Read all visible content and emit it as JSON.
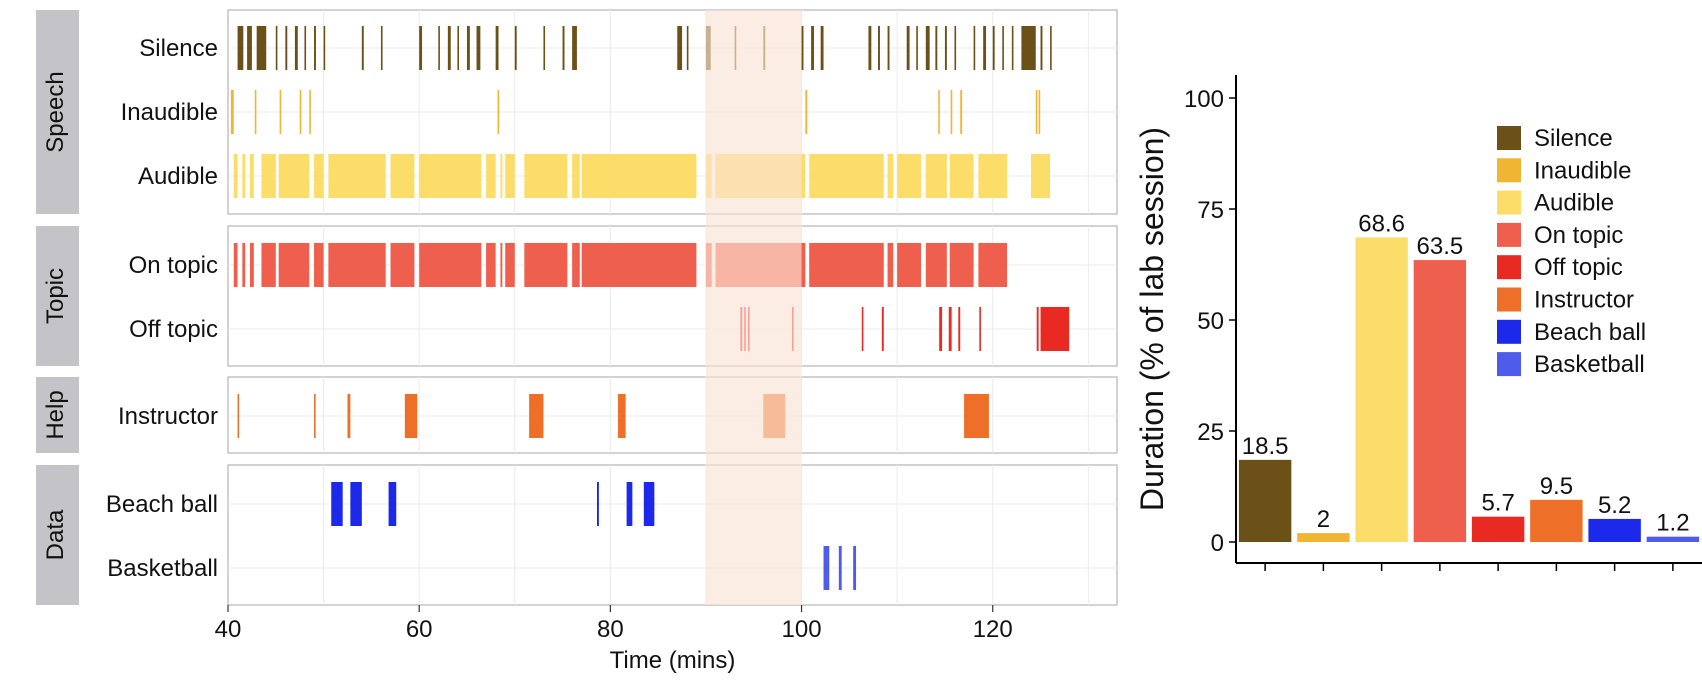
{
  "chart_data": [
    {
      "type": "timeline",
      "xlabel": "Time (mins)",
      "xlim": [
        40,
        133
      ],
      "xticks": [
        40,
        60,
        80,
        100,
        120
      ],
      "highlight_range": [
        90,
        100
      ],
      "highlight_color": "#FBE3D6",
      "facets": [
        {
          "label": "Speech",
          "rows": [
            {
              "label": "Silence",
              "color": "#6B5018",
              "segments": [
                [
                  41,
                  41.6
                ],
                [
                  42,
                  42.5
                ],
                [
                  43,
                  44
                ],
                [
                  45,
                  45.1
                ],
                [
                  46,
                  46.2
                ],
                [
                  47,
                  47.3
                ],
                [
                  48,
                  48.1
                ],
                [
                  49,
                  49.2
                ],
                [
                  50,
                  50.1
                ],
                [
                  54,
                  54.2
                ],
                [
                  56,
                  56.1
                ],
                [
                  60,
                  60.3
                ],
                [
                  62,
                  62.1
                ],
                [
                  63,
                  63.3
                ],
                [
                  64,
                  64.1
                ],
                [
                  65,
                  65.3
                ],
                [
                  66,
                  66.4
                ],
                [
                  68,
                  68.3
                ],
                [
                  70,
                  70.2
                ],
                [
                  73,
                  73.1
                ],
                [
                  75,
                  75.2
                ],
                [
                  76,
                  76.5
                ],
                [
                  87,
                  87.5
                ],
                [
                  88,
                  88.1
                ],
                [
                  90,
                  90.5
                ],
                [
                  93,
                  93.1
                ],
                [
                  96,
                  96.2
                ],
                [
                  100,
                  100.2
                ],
                [
                  101,
                  101.3
                ],
                [
                  102,
                  102.3
                ],
                [
                  107,
                  107.3
                ],
                [
                  108,
                  108.2
                ],
                [
                  109,
                  109.2
                ],
                [
                  111,
                  111.3
                ],
                [
                  112,
                  112.1
                ],
                [
                  113,
                  113.4
                ],
                [
                  114,
                  114.2
                ],
                [
                  115,
                  115.2
                ],
                [
                  116,
                  116.1
                ],
                [
                  118,
                  118.1
                ],
                [
                  119,
                  119.3
                ],
                [
                  120,
                  120.2
                ],
                [
                  121,
                  121.1
                ],
                [
                  122,
                  122.1
                ],
                [
                  123,
                  124.5
                ],
                [
                  125,
                  125.2
                ],
                [
                  126,
                  126.1
                ]
              ]
            },
            {
              "label": "Inaudible",
              "color": "#F0B533",
              "segments": [
                [
                  40.3,
                  40.6
                ],
                [
                  42.8,
                  42.9
                ],
                [
                  45.4,
                  45.5
                ],
                [
                  47.5,
                  47.6
                ],
                [
                  48.5,
                  48.6
                ],
                [
                  68.2,
                  68.3
                ],
                [
                  100.4,
                  100.6
                ],
                [
                  114.3,
                  114.4
                ],
                [
                  115.6,
                  115.7
                ],
                [
                  116.6,
                  116.8
                ],
                [
                  124.5,
                  124.6
                ],
                [
                  124.8,
                  124.9
                ]
              ]
            },
            {
              "label": "Audible",
              "color": "#FCDD6A",
              "segments": [
                [
                  40.6,
                  41
                ],
                [
                  41.5,
                  41.8
                ],
                [
                  42.3,
                  42.7
                ],
                [
                  43.5,
                  45
                ],
                [
                  45.3,
                  48.5
                ],
                [
                  49,
                  50
                ],
                [
                  50.5,
                  56.5
                ],
                [
                  57,
                  59.5
                ],
                [
                  60,
                  66.5
                ],
                [
                  67,
                  68
                ],
                [
                  68.5,
                  68.7
                ],
                [
                  69,
                  70
                ],
                [
                  71,
                  75.5
                ],
                [
                  76,
                  76.8
                ],
                [
                  77,
                  89
                ],
                [
                  90,
                  90.6
                ],
                [
                  91,
                  100.4
                ],
                [
                  100.8,
                  108.6
                ],
                [
                  109,
                  109.6
                ],
                [
                  110,
                  112.5
                ],
                [
                  113,
                  115.2
                ],
                [
                  115.5,
                  118
                ],
                [
                  118.5,
                  121.5
                ],
                [
                  124,
                  126
                ]
              ]
            }
          ]
        },
        {
          "label": "Topic",
          "rows": [
            {
              "label": "On topic",
              "color": "#EF5F4D",
              "segments": [
                [
                  40.6,
                  41
                ],
                [
                  41.5,
                  41.8
                ],
                [
                  42.3,
                  42.7
                ],
                [
                  43.5,
                  45
                ],
                [
                  45.3,
                  48.5
                ],
                [
                  49,
                  50
                ],
                [
                  50.5,
                  56.5
                ],
                [
                  57,
                  59.5
                ],
                [
                  60,
                  66.5
                ],
                [
                  67,
                  68
                ],
                [
                  68.5,
                  68.7
                ],
                [
                  69,
                  70
                ],
                [
                  71,
                  75.5
                ],
                [
                  76,
                  76.8
                ],
                [
                  77,
                  89
                ],
                [
                  90,
                  90.6
                ],
                [
                  91,
                  100.4
                ],
                [
                  100.8,
                  108.6
                ],
                [
                  109,
                  109.6
                ],
                [
                  110,
                  112.5
                ],
                [
                  113,
                  115.2
                ],
                [
                  115.5,
                  118
                ],
                [
                  118.5,
                  121.5
                ]
              ]
            },
            {
              "label": "Off topic",
              "color": "#E82A22",
              "segments": [
                [
                  93.6,
                  93.8
                ],
                [
                  94,
                  94.1
                ],
                [
                  94.4,
                  94.5
                ],
                [
                  99,
                  99.1
                ],
                [
                  106.3,
                  106.4
                ],
                [
                  108.4,
                  108.6
                ],
                [
                  114.4,
                  114.7
                ],
                [
                  115.4,
                  115.7
                ],
                [
                  116.4,
                  116.6
                ],
                [
                  118.6,
                  118.7
                ],
                [
                  124.6,
                  124.8
                ],
                [
                  125,
                  128
                ]
              ]
            }
          ]
        },
        {
          "label": "Help",
          "rows": [
            {
              "label": "Instructor",
              "color": "#EE7028",
              "segments": [
                [
                  41,
                  41.15
                ],
                [
                  49,
                  49.15
                ],
                [
                  52.5,
                  52.8
                ],
                [
                  58.5,
                  59.8
                ],
                [
                  71.5,
                  73
                ],
                [
                  80.8,
                  81.6
                ],
                [
                  96,
                  98.3
                ],
                [
                  117,
                  119.6
                ]
              ]
            }
          ]
        },
        {
          "label": "Data",
          "rows": [
            {
              "label": "Beach ball",
              "color": "#1C29EA",
              "segments": [
                [
                  50.8,
                  52
                ],
                [
                  52.8,
                  54
                ],
                [
                  56.8,
                  57.6
                ],
                [
                  78.6,
                  78.8
                ],
                [
                  81.7,
                  82.3
                ],
                [
                  83.5,
                  84.6
                ]
              ]
            },
            {
              "label": "Basketball",
              "color": "#4F5CEB",
              "segments": [
                [
                  102.3,
                  102.9
                ],
                [
                  103.9,
                  104.2
                ],
                [
                  105.4,
                  105.7
                ]
              ]
            }
          ]
        }
      ]
    },
    {
      "type": "bar",
      "ylabel": "Duration (% of lab session)",
      "ylim": [
        0,
        104
      ],
      "yticks": [
        0,
        25,
        50,
        75,
        100
      ],
      "categories": [
        "Silence",
        "Inaudible",
        "Audible",
        "On topic",
        "Off topic",
        "Instructor",
        "Beach ball",
        "Basketball"
      ],
      "values": [
        18.5,
        2,
        68.6,
        63.5,
        5.7,
        9.5,
        5.2,
        1.2
      ],
      "value_labels": [
        "18.5",
        "2",
        "68.6",
        "63.5",
        "5.7",
        "9.5",
        "5.2",
        "1.2"
      ],
      "colors": [
        "#6B5018",
        "#F0B533",
        "#FCDD6A",
        "#EF5F4D",
        "#E82A22",
        "#EE7028",
        "#1C29EA",
        "#4F5CEB"
      ],
      "legend": "top-right"
    }
  ]
}
